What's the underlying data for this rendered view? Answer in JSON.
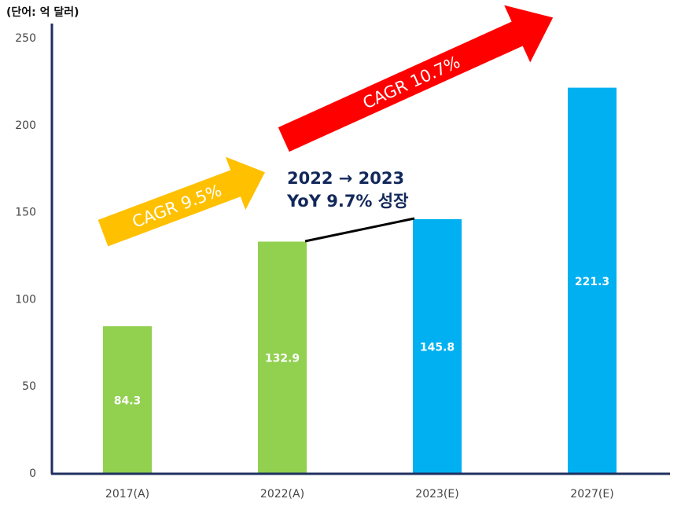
{
  "chart_data": {
    "type": "bar",
    "unit_label": "(단어: 억 달러)",
    "categories": [
      "2017(A)",
      "2022(A)",
      "2023(E)",
      "2027(E)"
    ],
    "values": [
      84.3,
      132.9,
      145.8,
      221.3
    ],
    "value_labels": [
      "84.3",
      "132.9",
      "145.8",
      "221.3"
    ],
    "bar_colors": [
      "#92d050",
      "#92d050",
      "#00b0f0",
      "#00b0f0"
    ],
    "ylim": [
      0,
      250
    ],
    "yticks": [
      0,
      50,
      100,
      150,
      200,
      250
    ],
    "axis_color": "#1f2f5f",
    "grid": false,
    "annotations": {
      "cagr_1": {
        "text": "CAGR 9.5%",
        "color": "#ffc000"
      },
      "cagr_2": {
        "text": "CAGR 10.7%",
        "color": "#ff0000"
      },
      "yoy_line1": "2022 → 2023",
      "yoy_line2": "YoY 9.7% 성장"
    }
  }
}
